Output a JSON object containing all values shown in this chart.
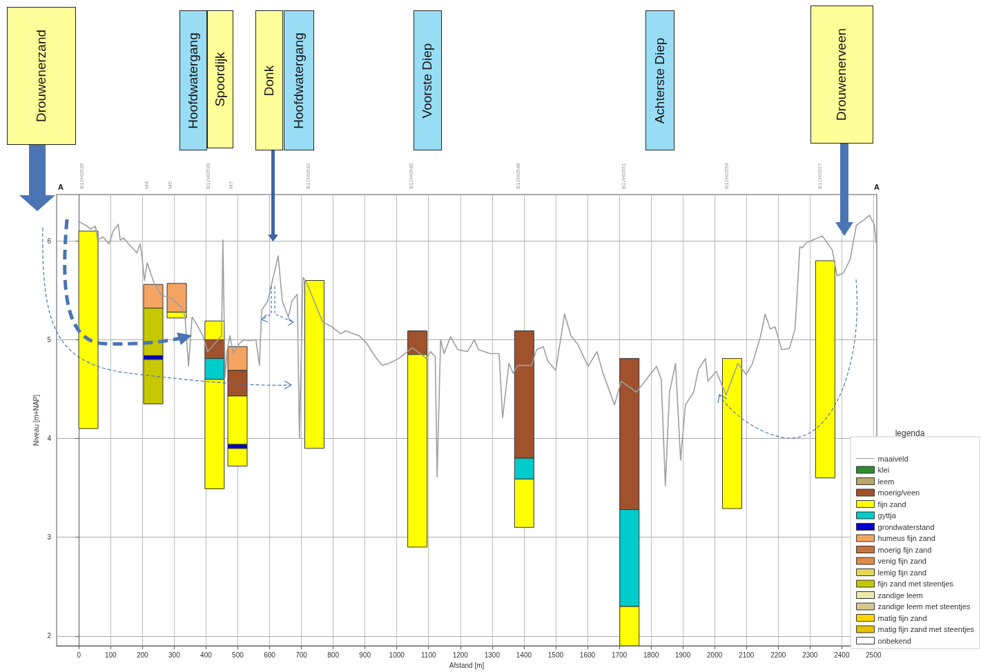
{
  "chart_data": {
    "type": "bar",
    "xlabel": "Afstand [m]",
    "ylabel": "Niveau [m+NAP]",
    "legend_title": "legenda",
    "legend": "bottom right",
    "grid": true,
    "xlim": [
      -70,
      2510
    ],
    "ylim": [
      1.9,
      6.47
    ],
    "xticks": [
      0,
      100,
      200,
      300,
      400,
      500,
      600,
      700,
      800,
      900,
      1000,
      1100,
      1200,
      1300,
      1400,
      1500,
      1600,
      1700,
      1800,
      1900,
      2000,
      2100,
      2200,
      2300,
      2400,
      2500
    ],
    "yticks": [
      2,
      3,
      4,
      5,
      6
    ],
    "annotations": [
      "Drouwenerzand",
      "Hoofdwatergang",
      "Spoordijk",
      "Donk",
      "Hoofdwatergang",
      "Voorste Diep",
      "Achterste Diep",
      "Drouwenerveen",
      "A",
      "A",
      "B12H0536",
      "M4",
      "M5",
      "B12H0539",
      "M7",
      "B12H0542",
      "B12H0545",
      "B12H0548",
      "B12H0551",
      "B12H0554",
      "B12H0557"
    ],
    "series": [
      {
        "name": "maaiveld",
        "type": "line",
        "color": "#9e9e9e",
        "x": [
          -2,
          26,
          37,
          52,
          59,
          76,
          95,
          108,
          124,
          130,
          141,
          156,
          171,
          182,
          193,
          199,
          206,
          215,
          236,
          260,
          291,
          325,
          334,
          345,
          356,
          366,
          390,
          405,
          449,
          453,
          460,
          466,
          475,
          486,
          507,
          520,
          536,
          557,
          568,
          575,
          594,
          627,
          640,
          659,
          670,
          687,
          694,
          705,
          715,
          767,
          796,
          824,
          839,
          882,
          904,
          932,
          954,
          976,
          1006,
          1049,
          1093,
          1106,
          1121,
          1127,
          1138,
          1149,
          1169,
          1192,
          1223,
          1244,
          1257,
          1294,
          1322,
          1333,
          1353,
          1366,
          1381,
          1424,
          1440,
          1461,
          1474,
          1500,
          1528,
          1548,
          1570,
          1602,
          1630,
          1648,
          1685,
          1706,
          1754,
          1817,
          1832,
          1845,
          1858,
          1877,
          1893,
          1908,
          1934,
          1949,
          1971,
          1979,
          2005,
          2036,
          2073,
          2099,
          2118,
          2144,
          2159,
          2175,
          2190,
          2211,
          2235,
          2253,
          2268,
          2276,
          2287,
          2309,
          2339,
          2370,
          2385,
          2404,
          2426,
          2446,
          2472,
          2487,
          2502,
          2508
        ],
        "values": [
          6.2,
          6.15,
          6.12,
          6.15,
          6.01,
          6.04,
          5.97,
          6.1,
          6.17,
          6.01,
          6.03,
          5.97,
          5.92,
          5.88,
          5.97,
          5.83,
          5.6,
          5.78,
          5.58,
          5.45,
          5.42,
          5.32,
          5.23,
          4.73,
          5.23,
          5.18,
          5.04,
          4.88,
          5.04,
          6.01,
          4.62,
          4.88,
          5.04,
          4.86,
          4.97,
          5.0,
          4.99,
          5.0,
          4.74,
          5.3,
          5.39,
          5.85,
          5.39,
          5.23,
          5.39,
          5.46,
          4.0,
          5.63,
          5.59,
          5.18,
          5.13,
          5.06,
          5.09,
          5.04,
          4.97,
          4.83,
          4.74,
          4.76,
          4.81,
          4.92,
          4.81,
          4.88,
          4.83,
          3.61,
          5.0,
          4.86,
          5.03,
          4.9,
          4.88,
          5.0,
          4.9,
          4.86,
          4.86,
          4.21,
          4.76,
          4.66,
          4.74,
          4.74,
          4.9,
          4.93,
          4.79,
          4.69,
          5.26,
          5.04,
          4.95,
          4.73,
          4.88,
          4.67,
          4.34,
          4.58,
          4.47,
          4.73,
          4.6,
          3.52,
          4.47,
          4.76,
          3.78,
          4.34,
          4.47,
          4.7,
          4.81,
          4.58,
          4.68,
          4.44,
          4.76,
          4.65,
          4.75,
          5.03,
          5.26,
          5.11,
          5.13,
          4.9,
          4.91,
          5.11,
          5.94,
          5.93,
          5.98,
          6.01,
          6.05,
          5.91,
          5.65,
          5.67,
          5.81,
          6.16,
          6.22,
          6.26,
          6.17,
          5.98
        ]
      },
      {
        "name": "klei",
        "color": "#2e8b2e"
      },
      {
        "name": "leem",
        "color": "#b8a968"
      },
      {
        "name": "moerig/veen",
        "color": "#a0522d",
        "x": [
          427,
          499,
          1065,
          1401,
          1732
        ],
        "base": [
          4.81,
          4.43,
          4.85,
          3.8,
          3.28
        ],
        "values": [
          0.19,
          0.26,
          0.24,
          1.29,
          1.53
        ]
      },
      {
        "name": "fijn zand",
        "color": "#ffff00",
        "x": [
          30,
          308,
          427,
          499,
          741,
          1065,
          1401,
          1732,
          2055,
          2348
        ],
        "base": [
          4.1,
          5.22,
          5.0,
          3.94,
          3.9,
          2.9,
          3.1,
          1.9,
          3.29,
          3.6
        ],
        "values": [
          2.0,
          0.06,
          0.19,
          0.49,
          1.7,
          1.95,
          0.49,
          0.4,
          1.52,
          2.2
        ]
      },
      {
        "color": "#ffff00",
        "x": [
          427,
          499
        ],
        "base": [
          3.49,
          3.72
        ],
        "values": [
          1.11,
          0.18
        ]
      },
      {
        "name": "gyttja",
        "color": "#00cccc",
        "x": [
          427,
          1401,
          1732
        ],
        "base": [
          4.6,
          3.59,
          2.3
        ],
        "values": [
          0.21,
          0.21,
          0.98
        ]
      },
      {
        "name": "grondwaterstand",
        "color": "#0000cc",
        "x": [
          234,
          499
        ],
        "base": [
          4.8,
          3.9
        ],
        "values": [
          0.04,
          0.04
        ]
      },
      {
        "name": "humeus fijn zand",
        "color": "#f4a460",
        "x": [
          234,
          308,
          499
        ],
        "base": [
          5.32,
          5.28,
          4.69
        ],
        "values": [
          0.24,
          0.29,
          0.24
        ]
      },
      {
        "name": "moerig fijn zand",
        "color": "#c8733c"
      },
      {
        "name": "venig fijn zand",
        "color": "#e08a4a"
      },
      {
        "name": "lemig fijn zand",
        "color": "#e6d65a"
      },
      {
        "name": "fijn zand met steentjes",
        "color": "#c8c800",
        "x": [
          234
        ],
        "base": [
          4.35
        ],
        "values": [
          0.45
        ]
      },
      {
        "color": "#c8c800",
        "x": [
          234
        ],
        "base": [
          4.84
        ],
        "values": [
          0.48
        ]
      },
      {
        "name": "zandige leem",
        "color": "#eee8aa"
      },
      {
        "name": "zandige leem met steentjes",
        "color": "#d8c890"
      },
      {
        "name": "matig fijn zand",
        "color": "#ffd700"
      },
      {
        "name": "matig fijn zand met steentjes",
        "color": "#e6c200"
      },
      {
        "name": "onbekend",
        "color": "#ffffff"
      }
    ]
  }
}
